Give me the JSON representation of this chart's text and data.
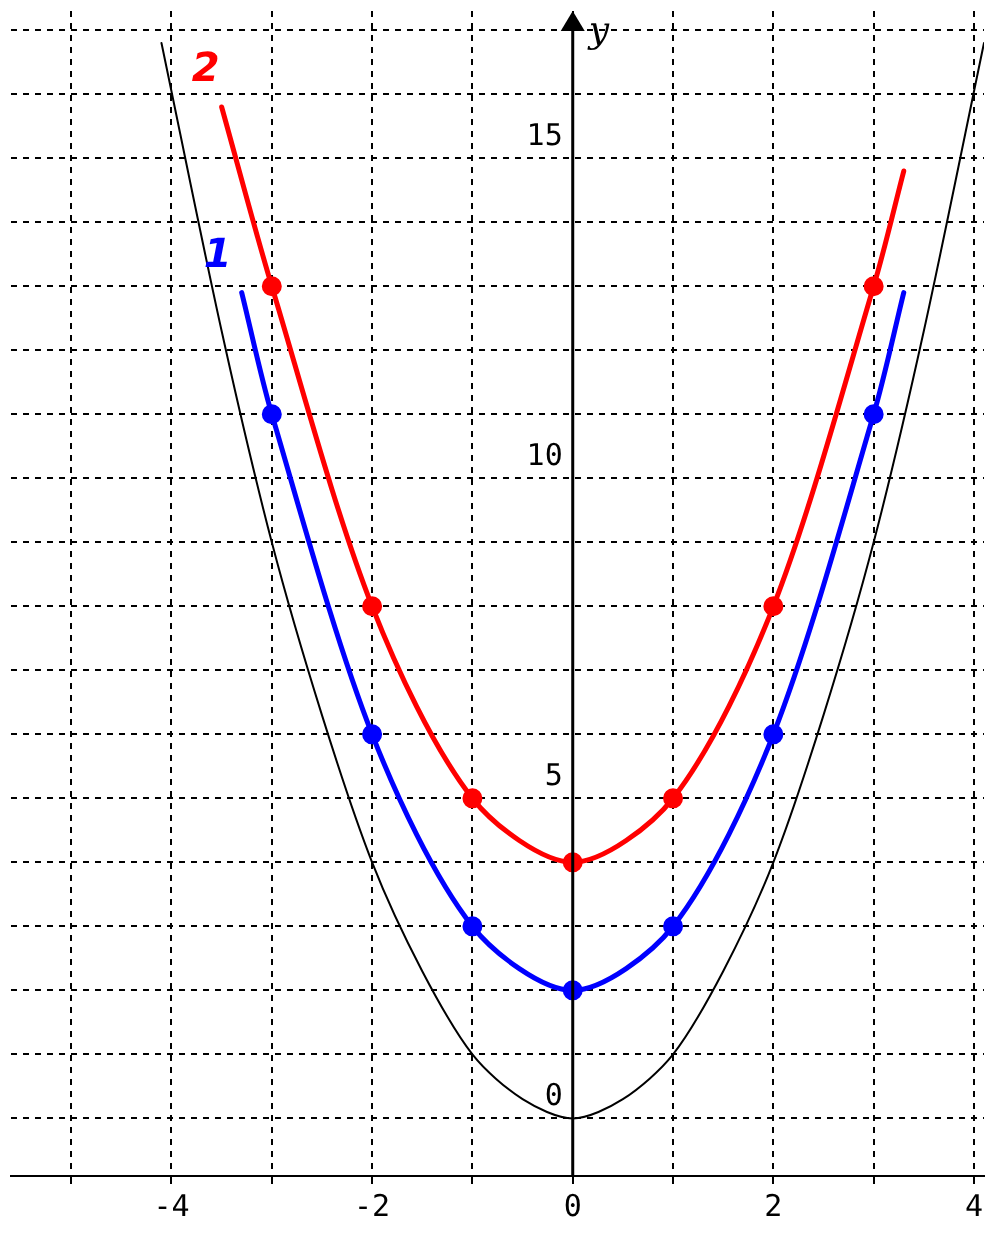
{
  "chart_data": {
    "type": "line",
    "ylabel": "y",
    "xlim": [
      -5.6,
      4.1
    ],
    "ylim": [
      -0.9,
      17.3
    ],
    "xticks": [
      {
        "value": -5,
        "label": null
      },
      -4,
      {
        "value": -3,
        "label": null
      },
      -2,
      {
        "value": -1,
        "label": null
      },
      0,
      {
        "value": 1,
        "label": null
      },
      2,
      {
        "value": 3,
        "label": null
      },
      4
    ],
    "yticks": [
      0,
      {
        "value": 1,
        "label": null
      },
      {
        "value": 2,
        "label": null
      },
      {
        "value": 3,
        "label": null
      },
      {
        "value": 4,
        "label": null
      },
      5,
      {
        "value": 6,
        "label": null
      },
      {
        "value": 7,
        "label": null
      },
      {
        "value": 8,
        "label": null
      },
      {
        "value": 9,
        "label": null
      },
      10,
      {
        "value": 11,
        "label": null
      },
      {
        "value": 12,
        "label": null
      },
      {
        "value": 13,
        "label": null
      },
      {
        "value": 14,
        "label": null
      },
      15,
      {
        "value": 16,
        "label": null
      },
      {
        "value": 17,
        "label": null
      }
    ],
    "grid": true,
    "legend": false,
    "line_style": "solid",
    "series": [
      {
        "color": "#000000",
        "marker": "none",
        "x": [
          -4.1,
          -3.5,
          -3,
          -2.5,
          -2,
          -1.5,
          -1,
          -0.5,
          0,
          0.5,
          1,
          1.5,
          2,
          2.5,
          3,
          3.5,
          4.1
        ],
        "values": [
          16.8,
          12.3,
          9,
          6.3,
          4,
          2.3,
          1,
          0.3,
          0,
          0.3,
          1,
          2.3,
          4,
          6.3,
          9,
          12.3,
          16.8
        ]
      },
      {
        "name": "1",
        "color": "#0000ff",
        "marker": "none",
        "x": [
          -3.3,
          -3,
          -2,
          -1,
          0,
          1,
          2,
          3,
          3.3
        ],
        "values": [
          12.9,
          11,
          6,
          3,
          2,
          3,
          6,
          11,
          12.9
        ]
      },
      {
        "type": "scatter",
        "color": "#0000ff",
        "marker": "circle",
        "x": [
          -3,
          -2,
          -1,
          0,
          1,
          2,
          3
        ],
        "values": [
          11,
          6,
          3,
          2,
          3,
          6,
          11
        ]
      },
      {
        "name": "2",
        "color": "#ff0000",
        "marker": "none",
        "x": [
          -3.5,
          -3,
          -2,
          -1,
          0,
          1,
          2,
          3,
          3.3
        ],
        "values": [
          15.8,
          13,
          8,
          5,
          4,
          5,
          8,
          13,
          14.8
        ]
      },
      {
        "type": "scatter",
        "color": "#ff0000",
        "marker": "circle",
        "x": [
          -3,
          -2,
          -1,
          0,
          1,
          2,
          3
        ],
        "values": [
          13,
          8,
          5,
          4,
          5,
          8,
          13
        ]
      }
    ]
  }
}
